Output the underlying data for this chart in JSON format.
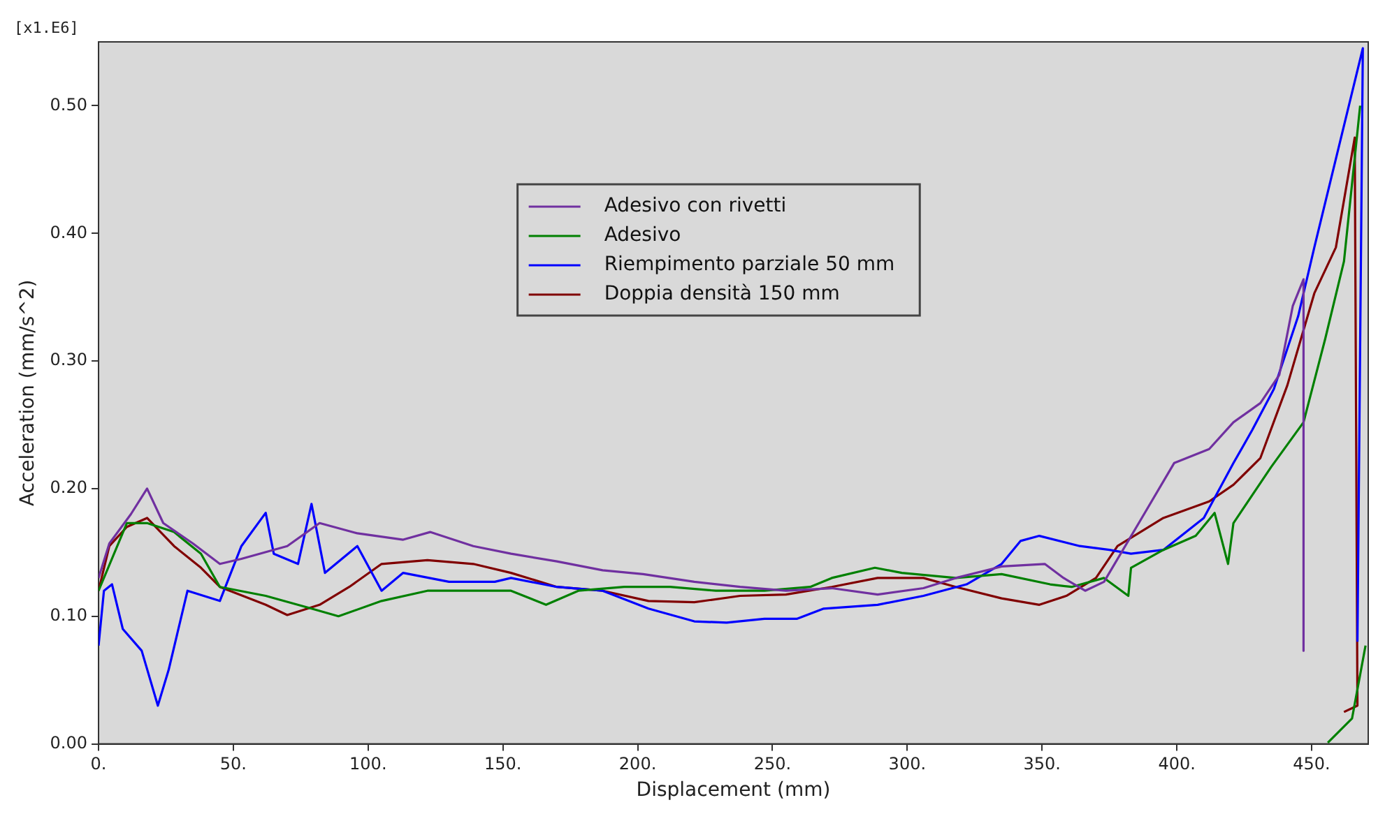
{
  "chart_data": {
    "type": "line",
    "xlabel": "Displacement (mm)",
    "ylabel": "Acceleration (mm/s^2)",
    "annotations": [
      "[x1.E6]"
    ],
    "xlim": [
      0,
      471
    ],
    "xticks": [
      {
        "value": 0,
        "label": "0."
      },
      {
        "value": 50,
        "label": "50."
      },
      {
        "value": 100,
        "label": "100."
      },
      {
        "value": 150,
        "label": "150."
      },
      {
        "value": 200,
        "label": "200."
      },
      {
        "value": 250,
        "label": "250."
      },
      {
        "value": 300,
        "label": "300."
      },
      {
        "value": 350,
        "label": "350."
      },
      {
        "value": 400,
        "label": "400."
      },
      {
        "value": 450,
        "label": "450."
      }
    ],
    "ylim": [
      0,
      0.55
    ],
    "yticks": [
      {
        "value": 0,
        "label": "0.00"
      },
      {
        "value": 0.1,
        "label": "0.10"
      },
      {
        "value": 0.2,
        "label": "0.20"
      },
      {
        "value": 0.3,
        "label": "0.30"
      },
      {
        "value": 0.4,
        "label": "0.40"
      },
      {
        "value": 0.5,
        "label": "0.50"
      }
    ],
    "grid": false,
    "legend": "top",
    "marker": "none",
    "line_style": "solid",
    "series": [
      {
        "name": "Adesivo con rivetti",
        "color": "#7030a0",
        "x": [
          0,
          4,
          12,
          18,
          24,
          35,
          45,
          53,
          70,
          82,
          96,
          113,
          123,
          139,
          153,
          170,
          187,
          202,
          221,
          238,
          255,
          272,
          289,
          306,
          318,
          335,
          351,
          358,
          366,
          373,
          387,
          399,
          412,
          421,
          431,
          438,
          443,
          447,
          447
        ],
        "values": [
          0.13,
          0.157,
          0.18,
          0.2,
          0.173,
          0.157,
          0.141,
          0.145,
          0.155,
          0.173,
          0.165,
          0.16,
          0.166,
          0.155,
          0.149,
          0.143,
          0.136,
          0.133,
          0.127,
          0.123,
          0.12,
          0.122,
          0.117,
          0.122,
          0.13,
          0.139,
          0.141,
          0.13,
          0.12,
          0.127,
          0.177,
          0.22,
          0.231,
          0.252,
          0.267,
          0.289,
          0.343,
          0.364,
          0.073
        ]
      },
      {
        "name": "Adesivo",
        "color": "#008000",
        "x": [
          0,
          10.5,
          18,
          28,
          38,
          45,
          62,
          79,
          89,
          105,
          122,
          139,
          153,
          166,
          178,
          195,
          212,
          229,
          247,
          264,
          272,
          288,
          298,
          318,
          335,
          353,
          361,
          373,
          382,
          383,
          395,
          407,
          414,
          419,
          421,
          435,
          447,
          455,
          462,
          468,
          null,
          456,
          465,
          470
        ],
        "values": [
          0.12,
          0.173,
          0.173,
          0.166,
          0.149,
          0.123,
          0.116,
          0.106,
          0.1,
          0.112,
          0.12,
          0.12,
          0.12,
          0.109,
          0.12,
          0.123,
          0.123,
          0.12,
          0.12,
          0.123,
          0.13,
          0.138,
          0.134,
          0.13,
          0.133,
          0.125,
          0.123,
          0.13,
          0.116,
          0.138,
          0.152,
          0.163,
          0.181,
          0.141,
          0.173,
          0.217,
          0.252,
          0.317,
          0.378,
          0.5,
          null,
          0.001,
          0.02,
          0.077
        ]
      },
      {
        "name": "Riempimento parziale 50 mm",
        "color": "#0000ff",
        "x": [
          0,
          2,
          5,
          9,
          16,
          22,
          26,
          33,
          45,
          53,
          62,
          65,
          74,
          79,
          84,
          96,
          105,
          113,
          130,
          147,
          153,
          170,
          187,
          204,
          221,
          233,
          247,
          259,
          269,
          289,
          306,
          322,
          335,
          342,
          349,
          364,
          375,
          383,
          395,
          410,
          421,
          428,
          436,
          445,
          451,
          469,
          467
        ],
        "values": [
          0.077,
          0.12,
          0.125,
          0.09,
          0.073,
          0.03,
          0.058,
          0.12,
          0.112,
          0.155,
          0.181,
          0.149,
          0.141,
          0.188,
          0.134,
          0.155,
          0.12,
          0.134,
          0.127,
          0.127,
          0.13,
          0.123,
          0.12,
          0.106,
          0.096,
          0.095,
          0.098,
          0.098,
          0.106,
          0.109,
          0.116,
          0.125,
          0.141,
          0.159,
          0.163,
          0.155,
          0.152,
          0.149,
          0.152,
          0.177,
          0.22,
          0.246,
          0.278,
          0.335,
          0.389,
          0.545,
          0.08
        ]
      },
      {
        "name": "Doppia densità 150 mm",
        "color": "#800000",
        "x": [
          0,
          4,
          10.5,
          18,
          28,
          38,
          45,
          62,
          70,
          82,
          93,
          105,
          122,
          139,
          153,
          170,
          187,
          204,
          221,
          238,
          255,
          272,
          289,
          306,
          318,
          335,
          349,
          359,
          370,
          378,
          395,
          412,
          421,
          431,
          441,
          451,
          459,
          466,
          467,
          462
        ],
        "values": [
          0.12,
          0.155,
          0.17,
          0.177,
          0.155,
          0.138,
          0.123,
          0.109,
          0.101,
          0.109,
          0.123,
          0.141,
          0.144,
          0.141,
          0.134,
          0.123,
          0.12,
          0.112,
          0.111,
          0.116,
          0.117,
          0.123,
          0.13,
          0.13,
          0.123,
          0.114,
          0.109,
          0.116,
          0.13,
          0.155,
          0.177,
          0.19,
          0.203,
          0.224,
          0.281,
          0.353,
          0.389,
          0.475,
          0.03,
          0.025
        ]
      }
    ]
  }
}
